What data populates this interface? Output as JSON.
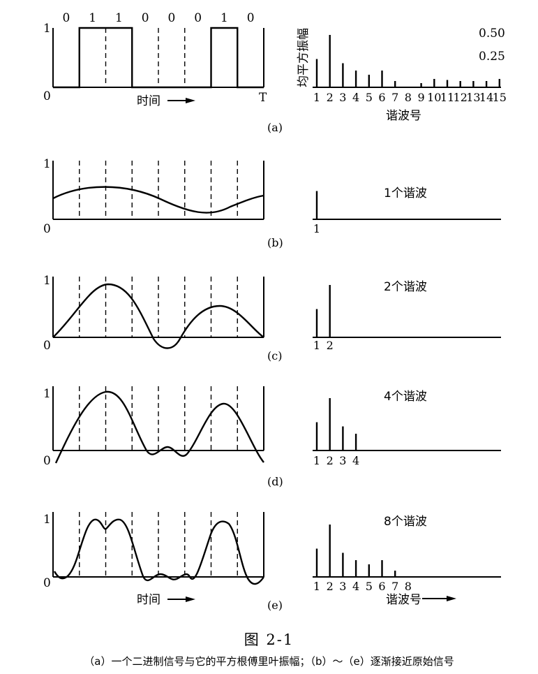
{
  "figure_title": "图  2-1",
  "caption": "（a）一个二进制信号与它的平方根傅里叶振幅；（b）～（e）逐渐接近原始信号",
  "signal": {
    "bits": [
      "0",
      "1",
      "1",
      "0",
      "0",
      "0",
      "1",
      "0"
    ],
    "y_one_label": "1",
    "y_zero_label": "0",
    "end_label": "T",
    "time_label": "时间"
  },
  "spectrum_header": {
    "ylabel": "均平方振幅",
    "ref_high": "0.50",
    "ref_low": "0.25",
    "xlabel": "谐波号"
  },
  "panel_labels": [
    "(a)",
    "(b)",
    "(c)",
    "(d)",
    "(e)"
  ],
  "approx_titles": [
    "1个谐波",
    "2个谐波",
    "4个谐波",
    "8个谐波"
  ],
  "chart_data": {
    "type": "bar",
    "title": "",
    "xlabel": "谐波号",
    "ylabel": "均平方振幅",
    "categories": [
      "1",
      "2",
      "3",
      "4",
      "5",
      "6",
      "7",
      "8",
      "9",
      "10",
      "11",
      "12",
      "13",
      "14",
      "15"
    ],
    "values": [
      0.27,
      0.5,
      0.23,
      0.16,
      0.12,
      0.16,
      0.06,
      0.0,
      0.04,
      0.08,
      0.07,
      0.06,
      0.06,
      0.06,
      0.08
    ],
    "ref_ticks": [
      "0.50",
      "0.25"
    ],
    "partial_spectra": {
      "1个谐波": [
        0.27
      ],
      "2个谐波": [
        0.27,
        0.5
      ],
      "4个谐波": [
        0.27,
        0.5,
        0.23,
        0.16
      ],
      "8个谐波": [
        0.27,
        0.5,
        0.23,
        0.16,
        0.12,
        0.16,
        0.06,
        0.0
      ]
    }
  }
}
